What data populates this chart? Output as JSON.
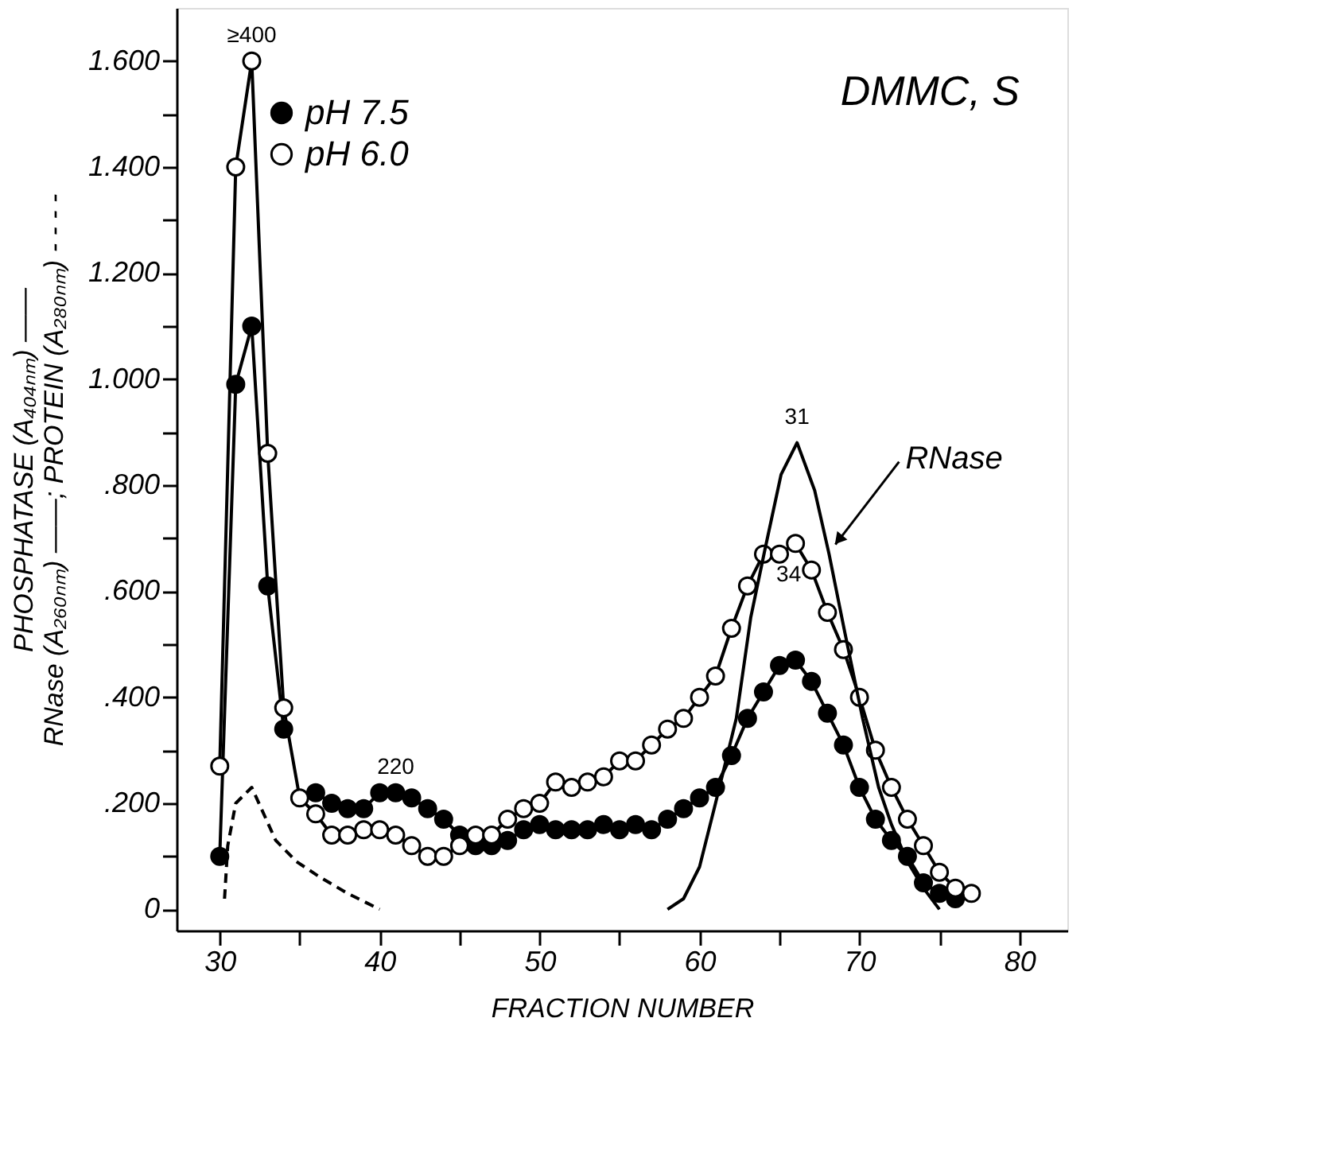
{
  "chart_data": {
    "type": "line",
    "xlabel": "FRACTION NUMBER",
    "ylabel": "PHOSPHATASE  (A₄₀₄ₙₘ) ——\nRNase (A₂₆₀ₙₘ) ——; PROTEIN (A₂₈₀ₙₘ) - - - -",
    "xlim": [
      27.3,
      83
    ],
    "ylim": [
      -0.04,
      1.7
    ],
    "xticks": [
      30,
      {
        "value": 35,
        "label": null
      },
      40,
      {
        "value": 45,
        "label": null
      },
      50,
      {
        "value": 55,
        "label": null
      },
      60,
      {
        "value": 65,
        "label": null
      },
      70,
      {
        "value": 75,
        "label": null
      },
      80
    ],
    "yticks": [
      {
        "value": 0,
        "label": "0"
      },
      {
        "value": 0.1,
        "label": null
      },
      {
        "value": 0.2,
        "label": ".200"
      },
      {
        "value": 0.3,
        "label": null
      },
      {
        "value": 0.4,
        "label": ".400"
      },
      {
        "value": 0.5,
        "label": null
      },
      {
        "value": 0.6,
        "label": ".600"
      },
      {
        "value": 0.7,
        "label": null
      },
      {
        "value": 0.8,
        "label": ".800"
      },
      {
        "value": 0.9,
        "label": null
      },
      {
        "value": 1,
        "label": "1.000"
      },
      {
        "value": 1.1,
        "label": null
      },
      {
        "value": 1.2,
        "label": "1.200"
      },
      {
        "value": 1.3,
        "label": null
      },
      {
        "value": 1.4,
        "label": "1.400"
      },
      {
        "value": 1.5,
        "label": null
      },
      {
        "value": 1.6,
        "label": "1.600"
      }
    ],
    "grid": false,
    "legend": "top left",
    "series": [
      {
        "name": "pH 7.5",
        "color": "#000000",
        "marker": "circle",
        "line_style": "solid",
        "x": [
          30,
          31,
          32,
          33,
          34,
          35,
          36,
          37,
          38,
          39,
          40,
          41,
          42,
          43,
          44,
          45,
          46,
          47,
          48,
          49,
          50,
          51,
          52,
          53,
          54,
          55,
          56,
          57,
          58,
          59,
          60,
          61,
          62,
          63,
          64,
          65,
          66,
          67,
          68,
          69,
          70,
          71,
          72,
          73,
          74,
          75,
          76
        ],
        "values": [
          0.1,
          0.99,
          1.1,
          0.61,
          0.34,
          null,
          0.22,
          0.2,
          0.19,
          0.19,
          0.22,
          0.22,
          0.21,
          0.19,
          0.17,
          0.14,
          0.12,
          0.12,
          0.13,
          0.15,
          0.16,
          0.15,
          0.15,
          0.15,
          0.16,
          0.15,
          0.16,
          0.15,
          0.17,
          0.19,
          0.21,
          0.23,
          0.29,
          0.36,
          0.41,
          0.46,
          0.47,
          0.43,
          0.37,
          0.31,
          0.23,
          0.17,
          0.13,
          0.1,
          0.05,
          0.03,
          0.02
        ]
      },
      {
        "name": "pH 6.0",
        "color": "#ffffff",
        "marker": "circle",
        "line_style": "solid",
        "x": [
          30,
          31,
          32,
          33,
          34,
          35,
          36,
          37,
          38,
          39,
          40,
          41,
          42,
          43,
          44,
          45,
          46,
          47,
          48,
          49,
          50,
          51,
          52,
          53,
          54,
          55,
          56,
          57,
          58,
          59,
          60,
          61,
          62,
          63,
          64,
          65,
          66,
          67,
          68,
          69,
          70,
          71,
          72,
          73,
          74,
          75,
          76,
          77
        ],
        "values": [
          0.27,
          1.4,
          1.6,
          0.86,
          0.38,
          0.21,
          0.18,
          0.14,
          0.14,
          0.15,
          0.15,
          0.14,
          0.12,
          0.1,
          0.1,
          0.12,
          0.14,
          0.14,
          0.17,
          0.19,
          0.2,
          0.24,
          0.23,
          0.24,
          0.25,
          0.28,
          0.28,
          0.31,
          0.34,
          0.36,
          0.4,
          0.44,
          0.53,
          0.61,
          0.67,
          0.67,
          0.69,
          0.64,
          0.56,
          0.49,
          0.4,
          0.3,
          0.23,
          0.17,
          0.12,
          0.07,
          0.04,
          0.03
        ]
      },
      {
        "color": "#000000",
        "marker": "none",
        "line_style": "solid",
        "x": [
          58,
          59,
          60,
          61,
          62.3,
          63.2,
          64.1,
          65.1,
          66.1,
          67.2,
          68.1,
          69.1,
          70.2,
          71.2,
          72,
          73,
          74,
          75
        ],
        "values": [
          0.0,
          0.02,
          0.08,
          0.2,
          0.36,
          0.55,
          0.68,
          0.82,
          0.88,
          0.79,
          0.67,
          0.52,
          0.36,
          0.23,
          0.16,
          0.09,
          0.04,
          0.0
        ]
      },
      {
        "color": "#000000",
        "marker": "none",
        "line_style": "dashed",
        "x": [
          30.3,
          30.5,
          31,
          32,
          33.5,
          34.8,
          36.3,
          38,
          40
        ],
        "values": [
          0.02,
          0.12,
          0.2,
          0.23,
          0.13,
          0.09,
          0.06,
          0.03,
          0.0
        ]
      }
    ],
    "annotations": [
      "DMMC, S",
      {
        "text": "≥400",
        "x": 32,
        "y": 1.6
      },
      {
        "text": "220",
        "x": 41,
        "y": 0.22
      },
      {
        "text": "31",
        "x": 66.1,
        "y": 0.88
      },
      {
        "text": "34",
        "x": 65,
        "y": 0.67
      },
      {
        "text": "RNase",
        "x": 68.1,
        "y": 0.67
      }
    ]
  }
}
